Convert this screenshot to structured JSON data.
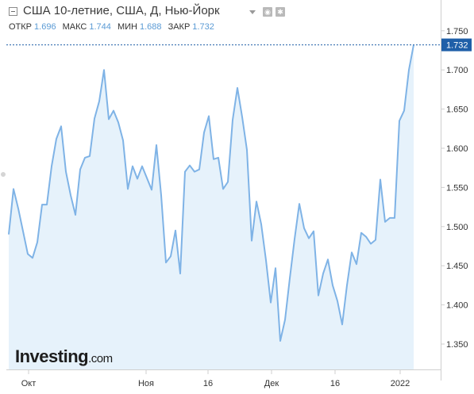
{
  "header": {
    "title": "США 10-летние, США, Д, Нью-Йорк",
    "ohlc": [
      {
        "label": "ОТКР",
        "value": "1.696"
      },
      {
        "label": "МАКС",
        "value": "1.744"
      },
      {
        "label": "МИН",
        "value": "1.688"
      },
      {
        "label": "ЗАКР",
        "value": "1.732"
      }
    ],
    "icons": [
      "settings-icon",
      "gear-icon"
    ]
  },
  "logo": {
    "word": "Investing",
    "domain": ".com"
  },
  "chart_data": {
    "type": "area",
    "title": "США 10-летние, США, Д, Нью-Йорк",
    "xlabel": "",
    "ylabel": "",
    "x_ticks": [
      "Окт",
      "Ноя",
      "16",
      "Дек",
      "16",
      "2022"
    ],
    "y_ticks": [
      "1.350",
      "1.400",
      "1.450",
      "1.500",
      "1.550",
      "1.600",
      "1.650",
      "1.700",
      "1.750"
    ],
    "ylim": [
      1.3,
      1.78
    ],
    "last_value_label": "1.732",
    "grid": false,
    "series": [
      {
        "values": [
          1.49,
          1.548,
          1.523,
          1.494,
          1.465,
          1.46,
          1.48,
          1.528,
          1.528,
          1.577,
          1.612,
          1.628,
          1.57,
          1.54,
          1.515,
          1.573,
          1.588,
          1.59,
          1.638,
          1.66,
          1.7,
          1.637,
          1.648,
          1.633,
          1.61,
          1.548,
          1.577,
          1.561,
          1.577,
          1.562,
          1.547,
          1.604,
          1.54,
          1.454,
          1.462,
          1.495,
          1.44,
          1.57,
          1.578,
          1.57,
          1.573,
          1.62,
          1.641,
          1.586,
          1.588,
          1.548,
          1.557,
          1.636,
          1.677,
          1.64,
          1.598,
          1.482,
          1.532,
          1.503,
          1.457,
          1.403,
          1.447,
          1.354,
          1.381,
          1.434,
          1.484,
          1.529,
          1.498,
          1.485,
          1.494,
          1.412,
          1.44,
          1.458,
          1.425,
          1.405,
          1.375,
          1.425,
          1.467,
          1.452,
          1.492,
          1.487,
          1.478,
          1.483,
          1.56,
          1.506,
          1.511,
          1.511,
          1.635,
          1.648,
          1.7,
          1.732
        ],
        "color": "#7fb3e6"
      }
    ],
    "colors": {
      "line": "#7fb3e6",
      "area": "#e6f2fb",
      "last_label_bg": "#1f5fa8",
      "dashed": "#1f5fa8"
    }
  }
}
